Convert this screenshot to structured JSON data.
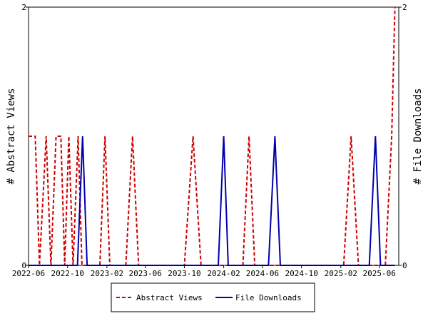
{
  "chart_data": {
    "type": "line",
    "title": "",
    "ylabel_left": "# Abstract Views",
    "ylabel_right": "# File Downloads",
    "ylim_left": [
      0,
      2
    ],
    "ylim_right": [
      0,
      2
    ],
    "yticks_left": [
      "0",
      "2"
    ],
    "yticks_right": [
      "0",
      "2"
    ],
    "xlim": [
      "2022-06",
      "2025-08"
    ],
    "xticks": [
      "2022-06",
      "2022-10",
      "2023-02",
      "2023-06",
      "2023-10",
      "2024-02",
      "2024-06",
      "2024-10",
      "2025-02",
      "2025-06"
    ],
    "grid": false,
    "legend_position": "bottom",
    "series": [
      {
        "name": "Abstract Views",
        "axis": "left",
        "color": "#cc0000",
        "style": "dashed",
        "points": [
          [
            "2022-06-01",
            1
          ],
          [
            "2022-06-22",
            1
          ],
          [
            "2022-07-05",
            0
          ],
          [
            "2022-07-26",
            1
          ],
          [
            "2022-08-10",
            0
          ],
          [
            "2022-08-26",
            1
          ],
          [
            "2022-09-10",
            1
          ],
          [
            "2022-09-22",
            0
          ],
          [
            "2022-10-05",
            1
          ],
          [
            "2022-10-18",
            0
          ],
          [
            "2022-11-03",
            1
          ],
          [
            "2022-11-15",
            0
          ],
          [
            "2023-01-10",
            0
          ],
          [
            "2023-01-26",
            1
          ],
          [
            "2023-02-10",
            0
          ],
          [
            "2023-04-01",
            0
          ],
          [
            "2023-04-22",
            1
          ],
          [
            "2023-05-11",
            0
          ],
          [
            "2023-10-01",
            0
          ],
          [
            "2023-10-28",
            1
          ],
          [
            "2023-11-22",
            0
          ],
          [
            "2024-04-01",
            0
          ],
          [
            "2024-04-20",
            1
          ],
          [
            "2024-05-08",
            0
          ],
          [
            "2025-02-10",
            0
          ],
          [
            "2025-03-05",
            1
          ],
          [
            "2025-03-28",
            0
          ],
          [
            "2025-06-20",
            0
          ],
          [
            "2025-07-10",
            1
          ],
          [
            "2025-07-20",
            2
          ]
        ]
      },
      {
        "name": "File Downloads",
        "axis": "right",
        "color": "#0000aa",
        "style": "solid",
        "points": [
          [
            "2022-06-01",
            0
          ],
          [
            "2022-11-01",
            0
          ],
          [
            "2022-11-17",
            1
          ],
          [
            "2022-12-01",
            0
          ],
          [
            "2024-01-15",
            0
          ],
          [
            "2024-02-01",
            1
          ],
          [
            "2024-02-15",
            0
          ],
          [
            "2024-06-20",
            0
          ],
          [
            "2024-07-10",
            1
          ],
          [
            "2024-07-27",
            0
          ],
          [
            "2025-05-01",
            0
          ],
          [
            "2025-05-20",
            1
          ],
          [
            "2025-06-05",
            0
          ],
          [
            "2025-07-20",
            0
          ]
        ]
      }
    ]
  }
}
